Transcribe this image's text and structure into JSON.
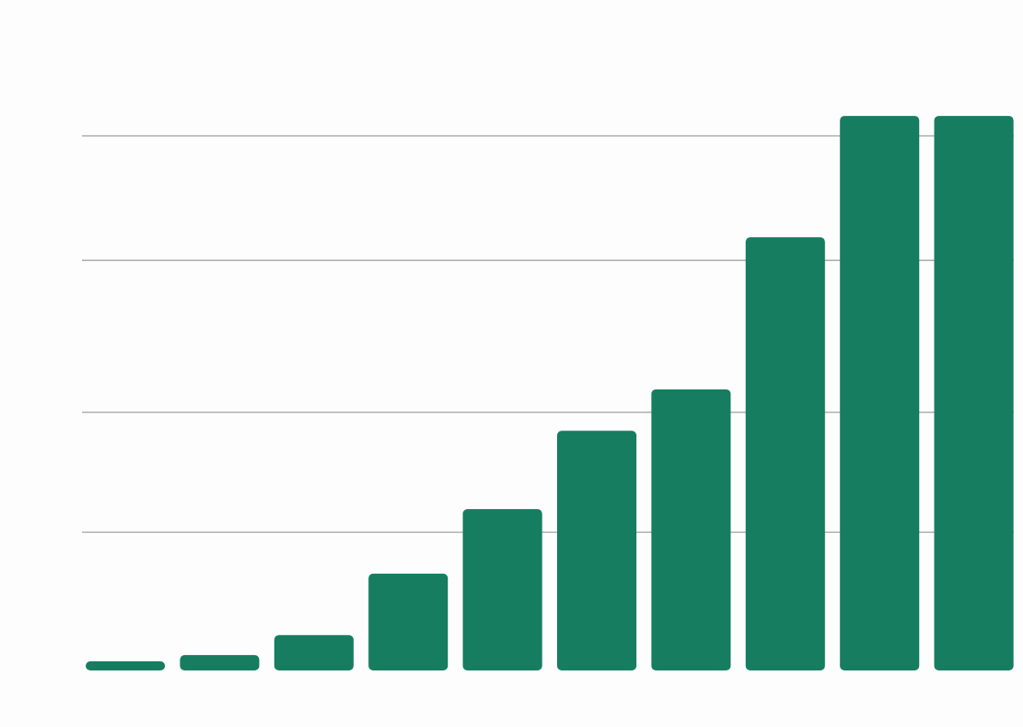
{
  "chart_data": {
    "type": "bar",
    "values": [
      0.5,
      1.0,
      2.3,
      6.3,
      10.5,
      15.6,
      18.3,
      28.2,
      36.1,
      36.1
    ],
    "gridlines": [
      9.0,
      16.8,
      26.7,
      34.8
    ],
    "grid": true,
    "colors": {
      "bar": "#167d60",
      "gridline": "#a9a9a9",
      "background": "#fdfdfd"
    }
  }
}
